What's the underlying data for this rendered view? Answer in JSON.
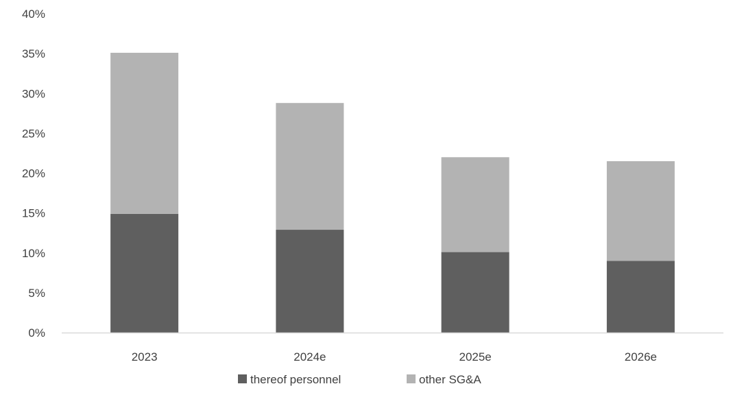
{
  "chart_data": {
    "type": "bar",
    "stacked": true,
    "categories": [
      "2023",
      "2024e",
      "2025e",
      "2026e"
    ],
    "series": [
      {
        "name": "thereof personnel",
        "values": [
          14.9,
          12.9,
          10.1,
          9.0
        ],
        "color": "#5f5f5f"
      },
      {
        "name": "other SG&A",
        "values": [
          20.2,
          15.9,
          11.9,
          12.5
        ],
        "color": "#b3b3b3"
      }
    ],
    "ylim": [
      0,
      40
    ],
    "ytick_labels": [
      "0%",
      "5%",
      "10%",
      "15%",
      "20%",
      "25%",
      "30%",
      "35%",
      "40%"
    ],
    "grid": false,
    "legend_position": "bottom",
    "axis_color": "#d9d9d9"
  }
}
